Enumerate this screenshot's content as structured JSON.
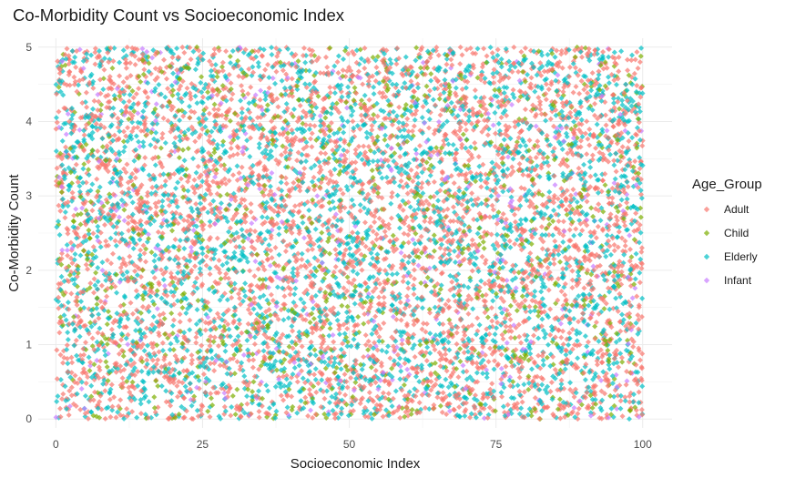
{
  "chart_data": {
    "type": "scatter",
    "title": "Co-Morbidity Count vs Socioeconomic Index",
    "xlabel": "Socioeconomic Index",
    "ylabel": "Co-Morbidity Count",
    "xlim": [
      -3,
      105
    ],
    "ylim": [
      -0.12,
      5.12
    ],
    "x_ticks": [
      0,
      25,
      50,
      75,
      100
    ],
    "y_ticks": [
      0,
      1,
      2,
      3,
      4,
      5
    ],
    "grid": true,
    "marker": "diamond",
    "point_opacity": 0.7,
    "legend": {
      "title": "Age_Group",
      "placement": "right",
      "entries": [
        "Adult",
        "Child",
        "Elderly",
        "Infant"
      ]
    },
    "data_domain": {
      "x": [
        0,
        100
      ],
      "y": [
        0,
        5
      ]
    },
    "series": [
      {
        "name": "Adult",
        "color": "#F8766D",
        "approx_point_count": 4000
      },
      {
        "name": "Child",
        "color": "#7CAE00",
        "approx_point_count": 1000
      },
      {
        "name": "Elderly",
        "color": "#00BFC4",
        "approx_point_count": 2900
      },
      {
        "name": "Infant",
        "color": "#C77CFF",
        "approx_point_count": 350
      }
    ]
  }
}
